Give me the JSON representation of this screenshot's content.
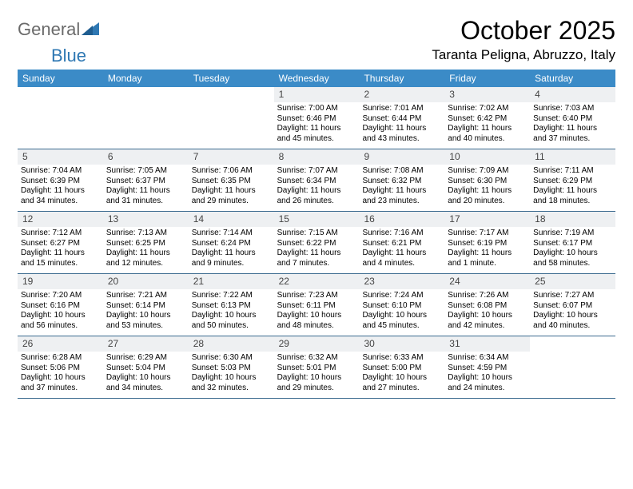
{
  "logo": {
    "text_a": "General",
    "text_b": "Blue",
    "color_gray": "#6a6a6a",
    "color_blue": "#2f78b3"
  },
  "title": {
    "month": "October 2025",
    "location": "Taranta Peligna, Abruzzo, Italy"
  },
  "colors": {
    "header_bg": "#3b8bc7",
    "header_fg": "#ffffff",
    "daynum_bg": "#eef0f2",
    "rule": "#3b6a8f",
    "text": "#000000"
  },
  "typography": {
    "title_fontsize": 32,
    "location_fontsize": 17,
    "dayhead_fontsize": 12,
    "daynum_fontsize": 12,
    "body_fontsize": 10
  },
  "day_labels": [
    "Sunday",
    "Monday",
    "Tuesday",
    "Wednesday",
    "Thursday",
    "Friday",
    "Saturday"
  ],
  "weeks": [
    [
      {
        "n": "",
        "sr": "",
        "ss": "",
        "dl": ""
      },
      {
        "n": "",
        "sr": "",
        "ss": "",
        "dl": ""
      },
      {
        "n": "",
        "sr": "",
        "ss": "",
        "dl": ""
      },
      {
        "n": "1",
        "sr": "Sunrise: 7:00 AM",
        "ss": "Sunset: 6:46 PM",
        "dl": "Daylight: 11 hours and 45 minutes."
      },
      {
        "n": "2",
        "sr": "Sunrise: 7:01 AM",
        "ss": "Sunset: 6:44 PM",
        "dl": "Daylight: 11 hours and 43 minutes."
      },
      {
        "n": "3",
        "sr": "Sunrise: 7:02 AM",
        "ss": "Sunset: 6:42 PM",
        "dl": "Daylight: 11 hours and 40 minutes."
      },
      {
        "n": "4",
        "sr": "Sunrise: 7:03 AM",
        "ss": "Sunset: 6:40 PM",
        "dl": "Daylight: 11 hours and 37 minutes."
      }
    ],
    [
      {
        "n": "5",
        "sr": "Sunrise: 7:04 AM",
        "ss": "Sunset: 6:39 PM",
        "dl": "Daylight: 11 hours and 34 minutes."
      },
      {
        "n": "6",
        "sr": "Sunrise: 7:05 AM",
        "ss": "Sunset: 6:37 PM",
        "dl": "Daylight: 11 hours and 31 minutes."
      },
      {
        "n": "7",
        "sr": "Sunrise: 7:06 AM",
        "ss": "Sunset: 6:35 PM",
        "dl": "Daylight: 11 hours and 29 minutes."
      },
      {
        "n": "8",
        "sr": "Sunrise: 7:07 AM",
        "ss": "Sunset: 6:34 PM",
        "dl": "Daylight: 11 hours and 26 minutes."
      },
      {
        "n": "9",
        "sr": "Sunrise: 7:08 AM",
        "ss": "Sunset: 6:32 PM",
        "dl": "Daylight: 11 hours and 23 minutes."
      },
      {
        "n": "10",
        "sr": "Sunrise: 7:09 AM",
        "ss": "Sunset: 6:30 PM",
        "dl": "Daylight: 11 hours and 20 minutes."
      },
      {
        "n": "11",
        "sr": "Sunrise: 7:11 AM",
        "ss": "Sunset: 6:29 PM",
        "dl": "Daylight: 11 hours and 18 minutes."
      }
    ],
    [
      {
        "n": "12",
        "sr": "Sunrise: 7:12 AM",
        "ss": "Sunset: 6:27 PM",
        "dl": "Daylight: 11 hours and 15 minutes."
      },
      {
        "n": "13",
        "sr": "Sunrise: 7:13 AM",
        "ss": "Sunset: 6:25 PM",
        "dl": "Daylight: 11 hours and 12 minutes."
      },
      {
        "n": "14",
        "sr": "Sunrise: 7:14 AM",
        "ss": "Sunset: 6:24 PM",
        "dl": "Daylight: 11 hours and 9 minutes."
      },
      {
        "n": "15",
        "sr": "Sunrise: 7:15 AM",
        "ss": "Sunset: 6:22 PM",
        "dl": "Daylight: 11 hours and 7 minutes."
      },
      {
        "n": "16",
        "sr": "Sunrise: 7:16 AM",
        "ss": "Sunset: 6:21 PM",
        "dl": "Daylight: 11 hours and 4 minutes."
      },
      {
        "n": "17",
        "sr": "Sunrise: 7:17 AM",
        "ss": "Sunset: 6:19 PM",
        "dl": "Daylight: 11 hours and 1 minute."
      },
      {
        "n": "18",
        "sr": "Sunrise: 7:19 AM",
        "ss": "Sunset: 6:17 PM",
        "dl": "Daylight: 10 hours and 58 minutes."
      }
    ],
    [
      {
        "n": "19",
        "sr": "Sunrise: 7:20 AM",
        "ss": "Sunset: 6:16 PM",
        "dl": "Daylight: 10 hours and 56 minutes."
      },
      {
        "n": "20",
        "sr": "Sunrise: 7:21 AM",
        "ss": "Sunset: 6:14 PM",
        "dl": "Daylight: 10 hours and 53 minutes."
      },
      {
        "n": "21",
        "sr": "Sunrise: 7:22 AM",
        "ss": "Sunset: 6:13 PM",
        "dl": "Daylight: 10 hours and 50 minutes."
      },
      {
        "n": "22",
        "sr": "Sunrise: 7:23 AM",
        "ss": "Sunset: 6:11 PM",
        "dl": "Daylight: 10 hours and 48 minutes."
      },
      {
        "n": "23",
        "sr": "Sunrise: 7:24 AM",
        "ss": "Sunset: 6:10 PM",
        "dl": "Daylight: 10 hours and 45 minutes."
      },
      {
        "n": "24",
        "sr": "Sunrise: 7:26 AM",
        "ss": "Sunset: 6:08 PM",
        "dl": "Daylight: 10 hours and 42 minutes."
      },
      {
        "n": "25",
        "sr": "Sunrise: 7:27 AM",
        "ss": "Sunset: 6:07 PM",
        "dl": "Daylight: 10 hours and 40 minutes."
      }
    ],
    [
      {
        "n": "26",
        "sr": "Sunrise: 6:28 AM",
        "ss": "Sunset: 5:06 PM",
        "dl": "Daylight: 10 hours and 37 minutes."
      },
      {
        "n": "27",
        "sr": "Sunrise: 6:29 AM",
        "ss": "Sunset: 5:04 PM",
        "dl": "Daylight: 10 hours and 34 minutes."
      },
      {
        "n": "28",
        "sr": "Sunrise: 6:30 AM",
        "ss": "Sunset: 5:03 PM",
        "dl": "Daylight: 10 hours and 32 minutes."
      },
      {
        "n": "29",
        "sr": "Sunrise: 6:32 AM",
        "ss": "Sunset: 5:01 PM",
        "dl": "Daylight: 10 hours and 29 minutes."
      },
      {
        "n": "30",
        "sr": "Sunrise: 6:33 AM",
        "ss": "Sunset: 5:00 PM",
        "dl": "Daylight: 10 hours and 27 minutes."
      },
      {
        "n": "31",
        "sr": "Sunrise: 6:34 AM",
        "ss": "Sunset: 4:59 PM",
        "dl": "Daylight: 10 hours and 24 minutes."
      },
      {
        "n": "",
        "sr": "",
        "ss": "",
        "dl": ""
      }
    ]
  ]
}
